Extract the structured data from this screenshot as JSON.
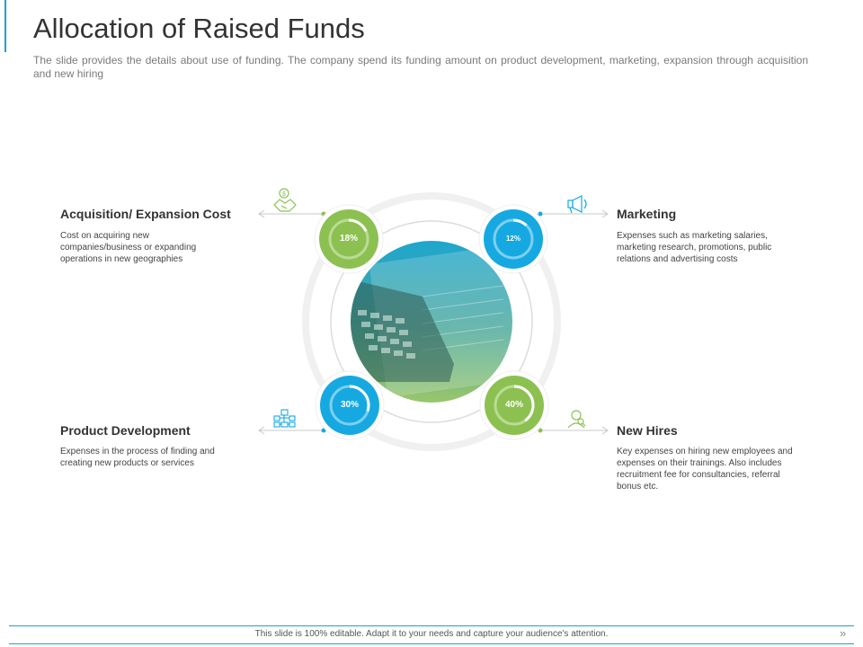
{
  "header": {
    "title": "Allocation of Raised Funds",
    "subtitle": "The slide provides the details about use of funding. The company spend its funding amount on product development, marketing, expansion through acquisition and new hiring"
  },
  "items": [
    {
      "id": "acquisition",
      "title": "Acquisition/ Expansion Cost",
      "text": "Cost on acquiring new companies/business or expanding operations in new geographies",
      "percent_label": "18%",
      "percent": 18,
      "color": "#8cc152",
      "icon": "handshake-dollar-icon"
    },
    {
      "id": "marketing",
      "title": "Marketing",
      "text": "Expenses such as marketing salaries, marketing research, promotions, public relations and advertising costs",
      "percent_label": "12%",
      "percent": 12,
      "color": "#16a9e1",
      "icon": "megaphone-icon"
    },
    {
      "id": "product",
      "title": "Product Development",
      "text": "Expenses in the process of finding and creating new products or services",
      "percent_label": "30%",
      "percent": 30,
      "color": "#16a9e1",
      "icon": "network-icon"
    },
    {
      "id": "hires",
      "title": "New Hires",
      "text": "Key expenses on hiring new employees and expenses on their trainings. Also includes recruitment fee for consultancies, referral bonus etc.",
      "percent_label": "40%",
      "percent": 40,
      "color": "#8cc152",
      "icon": "user-search-icon"
    }
  ],
  "footer": {
    "text": "This slide is 100% editable. Adapt it to your needs and capture your audience's attention.",
    "arrow": "»"
  },
  "colors": {
    "green": "#8cc152",
    "blue": "#16a9e1",
    "accent": "#1aa3c8"
  }
}
